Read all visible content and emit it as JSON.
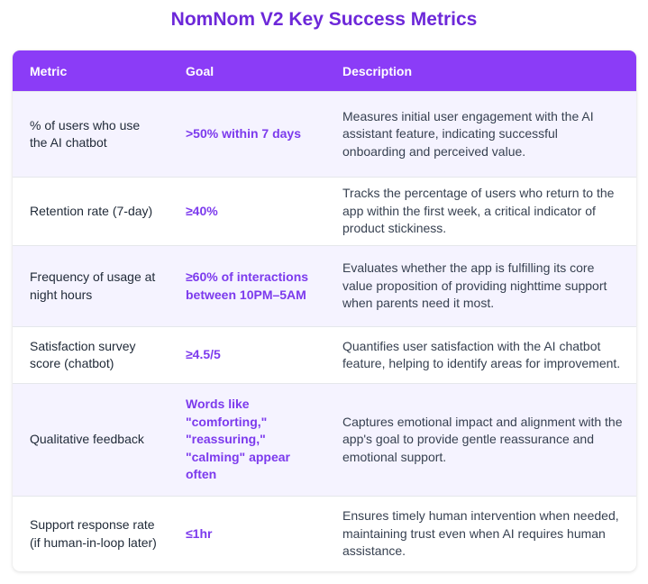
{
  "title": "NomNom V2 Key Success Metrics",
  "headers": {
    "metric": "Metric",
    "goal": "Goal",
    "description": "Description"
  },
  "rows": [
    {
      "metric": "% of users who use the AI chatbot",
      "goal": ">50% within 7 days",
      "description": "Measures initial user engagement with the AI assistant feature, indicating successful onboarding and perceived value."
    },
    {
      "metric": "Retention rate (7-day)",
      "goal": "≥40%",
      "description": "Tracks the percentage of users who return to the app within the first week, a critical indicator of product stickiness."
    },
    {
      "metric": "Frequency of usage at night hours",
      "goal": "≥60% of interactions between 10PM–5AM",
      "description": "Evaluates whether the app is fulfilling its core value proposition of providing nighttime support when parents need it most."
    },
    {
      "metric": "Satisfaction survey score (chatbot)",
      "goal": "≥4.5/5",
      "description": "Quantifies user satisfaction with the AI chatbot feature, helping to identify areas for improvement."
    },
    {
      "metric": "Qualitative feedback",
      "goal": "Words like \"comforting,\" \"reassuring,\" \"calming\" appear often",
      "description": "Captures emotional impact and alignment with the app's goal to provide gentle reassurance and emotional support."
    },
    {
      "metric": "Support response rate (if human-in-loop later)",
      "goal": "≤1hr",
      "description": "Ensures timely human intervention when needed, maintaining trust even when AI requires human assistance."
    }
  ]
}
